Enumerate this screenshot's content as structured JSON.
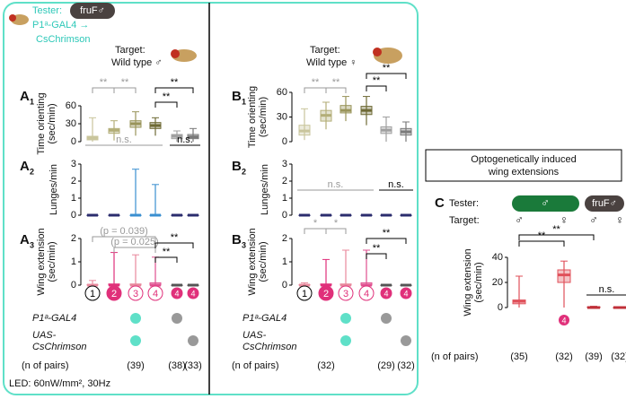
{
  "tester": {
    "label": "Tester:",
    "genotype": "fruF♂",
    "driver": "P1ᵃ-GAL4 →",
    "effector": "CsChrimson"
  },
  "targets": [
    {
      "label": "Target:",
      "name": "Wild type ♂"
    },
    {
      "label": "Target:",
      "name": "Wild type ♀"
    }
  ],
  "group_labels": [
    "1",
    "2",
    "3",
    "4",
    "4",
    "4"
  ],
  "charts": [
    {
      "type": "box",
      "label": "A",
      "sub": "1",
      "ylabel": [
        "Time orienting",
        "(sec/min)"
      ],
      "ylim": [
        0,
        60
      ],
      "yticks": [
        0,
        30,
        60
      ],
      "colors": [
        "#c9c59c",
        "#b3ae78",
        "#99945a",
        "#6e6a35",
        "#a0a0a0",
        "#7a7a7a"
      ],
      "boxes": [
        [
          0,
          3,
          6,
          9,
          40
        ],
        [
          2,
          14,
          19,
          22,
          35
        ],
        [
          10,
          24,
          30,
          35,
          50
        ],
        [
          10,
          22,
          27,
          32,
          40
        ],
        [
          0,
          5,
          9,
          12,
          18
        ],
        [
          0,
          5,
          8,
          12,
          22
        ]
      ],
      "significance": [
        "**",
        "**",
        "**",
        "**"
      ]
    },
    {
      "type": "box",
      "label": "A",
      "sub": "2",
      "ylabel": [
        "Lunges/min"
      ],
      "ylim": [
        0,
        3
      ],
      "yticks": [
        0,
        1,
        2,
        3
      ],
      "colors": [
        "#2b2d6e",
        "#2b2d6e",
        "#3a8fd0",
        "#3a8fd0",
        "#2b2d6e",
        "#2b2d6e"
      ],
      "boxes": [
        [
          0,
          0,
          0,
          0,
          0
        ],
        [
          0,
          0,
          0,
          0,
          0
        ],
        [
          0,
          0,
          0,
          0,
          2.7
        ],
        [
          0,
          0,
          0,
          0,
          1.8
        ],
        [
          0,
          0,
          0,
          0,
          0
        ],
        [
          0,
          0,
          0,
          0,
          0
        ]
      ],
      "significance": [
        "n.s.",
        "n.s."
      ]
    },
    {
      "type": "box",
      "label": "A",
      "sub": "3",
      "ylabel": [
        "Wing extension",
        "(sec/min)"
      ],
      "ylim": [
        0,
        2
      ],
      "yticks": [
        0,
        1,
        2
      ],
      "colors": [
        "#e8889c",
        "#e0307a",
        "#e8889c",
        "#e05090",
        "#555555",
        "#555555"
      ],
      "boxes": [
        [
          0,
          0,
          0,
          0.02,
          0.2
        ],
        [
          0,
          0,
          0,
          0.05,
          1.4
        ],
        [
          0,
          0,
          0,
          0.05,
          1.3
        ],
        [
          0,
          0,
          0,
          0.1,
          1.2
        ],
        [
          0,
          0,
          0,
          0,
          0
        ],
        [
          0,
          0,
          0,
          0,
          0
        ]
      ],
      "significance": [
        "(p = 0.039)",
        "(p = 0.025)",
        "**",
        "**"
      ]
    },
    {
      "type": "box",
      "label": "B",
      "sub": "1",
      "ylabel": [
        "Time orienting",
        "(sec/min)"
      ],
      "ylim": [
        0,
        60
      ],
      "yticks": [
        0,
        30,
        60
      ],
      "colors": [
        "#c9c59c",
        "#b3ae78",
        "#99945a",
        "#6e6a35",
        "#a0a0a0",
        "#7a7a7a"
      ],
      "boxes": [
        [
          2,
          8,
          13,
          20,
          40
        ],
        [
          15,
          25,
          32,
          38,
          48
        ],
        [
          25,
          35,
          38,
          44,
          55
        ],
        [
          20,
          33,
          38,
          43,
          55
        ],
        [
          0,
          10,
          14,
          18,
          30
        ],
        [
          0,
          8,
          12,
          16,
          24
        ]
      ],
      "significance": [
        "**",
        "**",
        "**",
        "**"
      ]
    },
    {
      "type": "box",
      "label": "B",
      "sub": "2",
      "ylabel": [
        "Lunges/min"
      ],
      "ylim": [
        0,
        3
      ],
      "yticks": [
        0,
        1,
        2,
        3
      ],
      "colors": [
        "#2b2d6e",
        "#2b2d6e",
        "#2b2d6e",
        "#2b2d6e",
        "#2b2d6e",
        "#2b2d6e"
      ],
      "boxes": [
        [
          0,
          0,
          0,
          0,
          0
        ],
        [
          0,
          0,
          0,
          0,
          0
        ],
        [
          0,
          0,
          0,
          0,
          0
        ],
        [
          0,
          0,
          0,
          0,
          0
        ],
        [
          0,
          0,
          0,
          0,
          0
        ],
        [
          0,
          0,
          0,
          0,
          0
        ]
      ],
      "significance": [
        "n.s.",
        "n.s."
      ]
    },
    {
      "type": "box",
      "label": "B",
      "sub": "3",
      "ylabel": [
        "Wing extension",
        "(sec/min)"
      ],
      "ylim": [
        0,
        2
      ],
      "yticks": [
        0,
        1,
        2
      ],
      "colors": [
        "#e8889c",
        "#e0307a",
        "#e8889c",
        "#e05090",
        "#555555",
        "#555555"
      ],
      "boxes": [
        [
          0,
          0,
          0,
          0.02,
          0.1
        ],
        [
          0,
          0,
          0,
          0.05,
          1.1
        ],
        [
          0,
          0,
          0,
          0.05,
          1.5
        ],
        [
          0,
          0,
          0,
          0.1,
          1.5
        ],
        [
          0,
          0,
          0,
          0,
          0
        ],
        [
          0,
          0,
          0,
          0,
          0
        ]
      ],
      "significance": [
        "*",
        "*",
        "**",
        "**"
      ]
    }
  ],
  "genotype_rows": [
    "P1ᵃ-GAL4",
    "UAS-",
    "CsChrimson"
  ],
  "n_label": "(n of pairs)",
  "n_left": [
    "(39)",
    "(38)",
    "(33)"
  ],
  "n_right": [
    "(32)",
    "(29)",
    "(32)"
  ],
  "led": "LED: 60nW/mm², 30Hz",
  "panel_c": {
    "title": [
      "Optogenetically induced",
      "wing extensions"
    ],
    "label": "C",
    "tester_label": "Tester:",
    "testers": [
      "♂",
      "fruF♂"
    ],
    "target_label": "Target:",
    "targets": [
      "♂",
      "♀",
      "♂",
      "♀"
    ],
    "group_label": "4",
    "chart": {
      "type": "box",
      "ylabel": [
        "Wing extension",
        "(sec/min)"
      ],
      "ylim": [
        0,
        40
      ],
      "yticks": [
        0,
        20,
        40
      ],
      "colors": [
        "#e0505a",
        "#e0505a",
        "#c0303a",
        "#c0303a"
      ],
      "boxes": [
        [
          0,
          3,
          5,
          6,
          25
        ],
        [
          0,
          20,
          26,
          30,
          37
        ],
        [
          0,
          0,
          0,
          0.5,
          1
        ],
        [
          0,
          0,
          0,
          0,
          0.5
        ]
      ],
      "significance": [
        "**",
        "**",
        "n.s."
      ]
    },
    "n_label": "(n of pairs)",
    "n": [
      "(35)",
      "(32)",
      "(39)",
      "(32)"
    ]
  }
}
